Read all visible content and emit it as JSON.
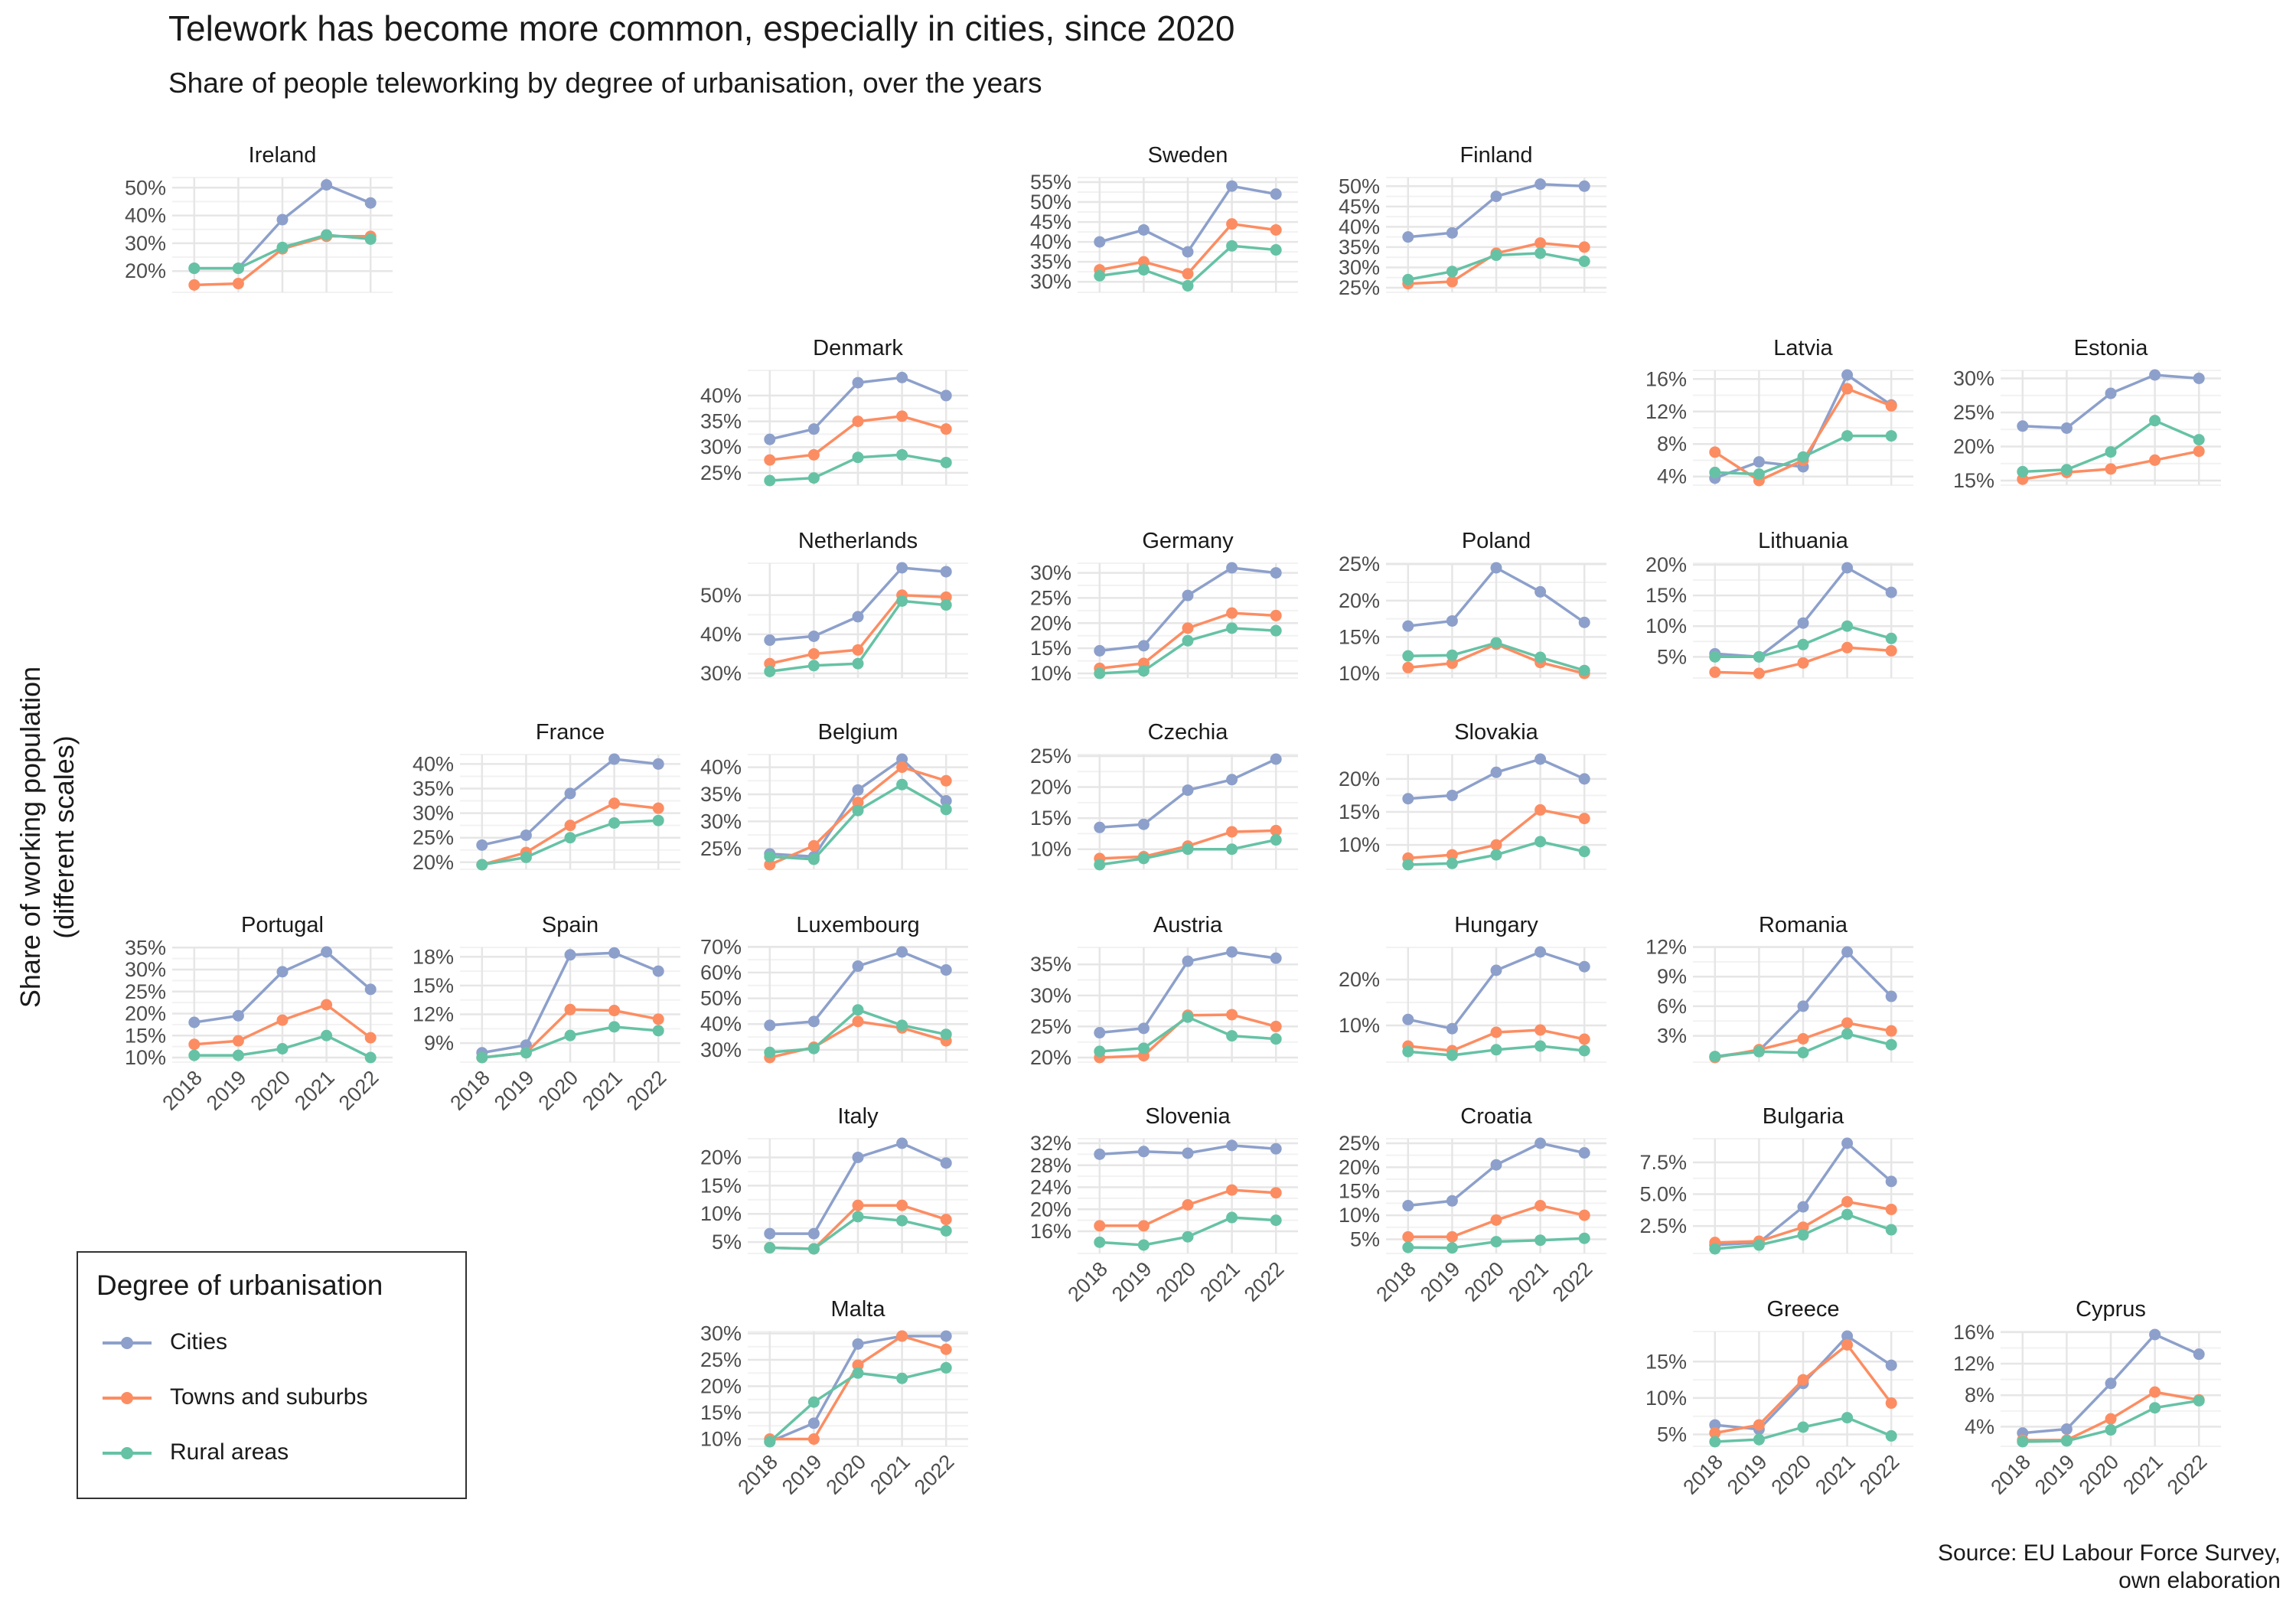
{
  "title": "Telework has become more common, especially in cities, since 2020",
  "subtitle": "Share of people teleworking by degree of urbanisation, over the years",
  "ylabel_lines": [
    "Share of working population",
    "(different scales)"
  ],
  "source_lines": [
    "Source: EU Labour Force Survey,",
    "own elaboration"
  ],
  "legend": {
    "title": "Degree of urbanisation",
    "items": [
      {
        "label": "Cities",
        "color": "#8DA0CB"
      },
      {
        "label": "Towns and suburbs",
        "color": "#FC8D62"
      },
      {
        "label": "Rural areas",
        "color": "#66C2A5"
      }
    ]
  },
  "chart_data": {
    "type": "line",
    "years": [
      "2018",
      "2019",
      "2020",
      "2021",
      "2022"
    ],
    "series_names": [
      "Cities",
      "Towns and suburbs",
      "Rural areas"
    ],
    "colors": [
      "#8DA0CB",
      "#FC8D62",
      "#66C2A5"
    ],
    "panels": [
      {
        "country": "Ireland",
        "row": 0,
        "col": 0,
        "ylim": [
          14,
          52
        ],
        "ticks": [
          20,
          30,
          40,
          50
        ],
        "tick_format": "int",
        "series": [
          [
            21,
            21,
            38.5,
            51,
            44.5
          ],
          [
            15,
            15.5,
            28,
            32.5,
            32.5
          ],
          [
            21,
            21,
            28.5,
            33,
            31.5
          ]
        ]
      },
      {
        "country": "Sweden",
        "row": 0,
        "col": 3,
        "ylim": [
          28.5,
          55
        ],
        "ticks": [
          30,
          35,
          40,
          45,
          50,
          55
        ],
        "tick_format": "int",
        "series": [
          [
            40,
            43,
            37.5,
            54,
            52
          ],
          [
            33,
            35,
            32,
            44.5,
            43
          ],
          [
            31.5,
            33,
            29,
            39,
            38
          ]
        ]
      },
      {
        "country": "Finland",
        "row": 0,
        "col": 4,
        "ylim": [
          25,
          51
        ],
        "ticks": [
          25,
          30,
          35,
          40,
          45,
          50
        ],
        "tick_format": "int",
        "series": [
          [
            37.5,
            38.5,
            47.5,
            50.5,
            50
          ],
          [
            26,
            26.5,
            33.5,
            36,
            35
          ],
          [
            27,
            29,
            33,
            33.5,
            31.5
          ]
        ]
      },
      {
        "country": "Denmark",
        "row": 1,
        "col": 2,
        "ylim": [
          23.5,
          44
        ],
        "ticks": [
          25,
          30,
          35,
          40
        ],
        "tick_format": "int",
        "series": [
          [
            31.5,
            33.5,
            42.5,
            43.5,
            40
          ],
          [
            27.5,
            28.5,
            35,
            36,
            33.5
          ],
          [
            23.5,
            24,
            28,
            28.5,
            27
          ]
        ]
      },
      {
        "country": "Latvia",
        "row": 1,
        "col": 5,
        "ylim": [
          3.5,
          16.5
        ],
        "ticks": [
          4,
          8,
          12,
          16
        ],
        "tick_format": "int",
        "series": [
          [
            3.8,
            5.8,
            5.2,
            16.5,
            12.8
          ],
          [
            7,
            3.5,
            6,
            14.8,
            12.7
          ],
          [
            4.5,
            4.3,
            6.4,
            9,
            9
          ]
        ]
      },
      {
        "country": "Estonia",
        "row": 1,
        "col": 6,
        "ylim": [
          15,
          30.5
        ],
        "ticks": [
          15,
          20,
          25,
          30
        ],
        "tick_format": "int",
        "series": [
          [
            23,
            22.7,
            27.8,
            30.5,
            30
          ],
          [
            15.2,
            16.2,
            16.7,
            18,
            19.3
          ],
          [
            16.3,
            16.6,
            19.2,
            23.8,
            21
          ]
        ]
      },
      {
        "country": "Netherlands",
        "row": 2,
        "col": 2,
        "ylim": [
          30,
          57
        ],
        "ticks": [
          30,
          40,
          50
        ],
        "tick_format": "int",
        "series": [
          [
            38.5,
            39.5,
            44.5,
            57,
            56
          ],
          [
            32.5,
            35,
            36,
            50,
            49.5
          ],
          [
            30.5,
            32,
            32.5,
            48.5,
            47.5
          ]
        ]
      },
      {
        "country": "Germany",
        "row": 2,
        "col": 3,
        "ylim": [
          10,
          31
        ],
        "ticks": [
          10,
          15,
          20,
          25,
          30
        ],
        "tick_format": "int",
        "series": [
          [
            14.5,
            15.5,
            25.5,
            31,
            30
          ],
          [
            11,
            12,
            19,
            22,
            21.5
          ],
          [
            10,
            10.5,
            16.5,
            19,
            18.5
          ]
        ]
      },
      {
        "country": "Poland",
        "row": 2,
        "col": 4,
        "ylim": [
          10,
          24.5
        ],
        "ticks": [
          10,
          15,
          20,
          25
        ],
        "tick_format": "int",
        "series": [
          [
            16.5,
            17.2,
            24.5,
            21.2,
            17
          ],
          [
            10.8,
            11.4,
            14,
            11.5,
            10
          ],
          [
            12.4,
            12.5,
            14.2,
            12.2,
            10.4
          ]
        ]
      },
      {
        "country": "Lithuania",
        "row": 2,
        "col": 5,
        "ylim": [
          2.3,
          19.5
        ],
        "ticks": [
          5,
          10,
          15,
          20
        ],
        "tick_format": "int",
        "series": [
          [
            5.5,
            5,
            10.5,
            19.5,
            15.5
          ],
          [
            2.5,
            2.3,
            4,
            6.5,
            6
          ],
          [
            5,
            5,
            7,
            10,
            8
          ]
        ]
      },
      {
        "country": "France",
        "row": 3,
        "col": 1,
        "ylim": [
          19.5,
          41
        ],
        "ticks": [
          20,
          25,
          30,
          35,
          40
        ],
        "tick_format": "int",
        "series": [
          [
            23.5,
            25.5,
            34,
            41,
            40
          ],
          [
            19.5,
            22,
            27.5,
            32,
            31
          ],
          [
            19.5,
            21,
            25,
            28,
            28.5
          ]
        ]
      },
      {
        "country": "Belgium",
        "row": 3,
        "col": 2,
        "ylim": [
          22,
          41.5
        ],
        "ticks": [
          25,
          30,
          35,
          40
        ],
        "tick_format": "int",
        "series": [
          [
            24,
            23.5,
            35.8,
            41.5,
            33.8
          ],
          [
            22,
            25.5,
            33.5,
            40,
            37.5
          ],
          [
            23.5,
            23,
            32,
            36.8,
            32.2
          ]
        ]
      },
      {
        "country": "Czechia",
        "row": 3,
        "col": 3,
        "ylim": [
          7.5,
          24.5
        ],
        "ticks": [
          10,
          15,
          20,
          25
        ],
        "tick_format": "int",
        "series": [
          [
            13.5,
            14,
            19.5,
            21.2,
            24.5
          ],
          [
            8.5,
            8.8,
            10.5,
            12.8,
            13
          ],
          [
            7.5,
            8.5,
            10,
            10,
            11.5
          ]
        ]
      },
      {
        "country": "Slovakia",
        "row": 3,
        "col": 4,
        "ylim": [
          7,
          23
        ],
        "ticks": [
          10,
          15,
          20
        ],
        "tick_format": "int",
        "series": [
          [
            17,
            17.5,
            21,
            23,
            20
          ],
          [
            8,
            8.5,
            10,
            15.3,
            14
          ],
          [
            7,
            7.2,
            8.5,
            10.5,
            9
          ]
        ]
      },
      {
        "country": "Portugal",
        "row": 4,
        "col": 0,
        "ylim": [
          10,
          34
        ],
        "ticks": [
          10,
          15,
          20,
          25,
          30,
          35
        ],
        "tick_format": "int",
        "series": [
          [
            18,
            19.5,
            29.5,
            34,
            25.5
          ],
          [
            13,
            13.8,
            18.5,
            22,
            14.5
          ],
          [
            10.5,
            10.5,
            12,
            15,
            10
          ]
        ]
      },
      {
        "country": "Spain",
        "row": 4,
        "col": 1,
        "ylim": [
          7.5,
          18.5
        ],
        "ticks": [
          9,
          12,
          15,
          18
        ],
        "tick_format": "int",
        "series": [
          [
            8,
            8.8,
            18.2,
            18.4,
            16.5
          ],
          [
            7.5,
            8,
            12.5,
            12.4,
            11.5
          ],
          [
            7.5,
            8,
            9.8,
            10.7,
            10.3
          ]
        ]
      },
      {
        "country": "Luxembourg",
        "row": 4,
        "col": 2,
        "ylim": [
          27,
          68
        ],
        "ticks": [
          30,
          40,
          50,
          60,
          70
        ],
        "tick_format": "int",
        "series": [
          [
            39.5,
            41,
            62.5,
            68,
            61
          ],
          [
            27,
            31,
            41,
            38.5,
            33.5
          ],
          [
            29,
            30.5,
            45.5,
            39.5,
            36
          ]
        ]
      },
      {
        "country": "Austria",
        "row": 4,
        "col": 3,
        "ylim": [
          20,
          37
        ],
        "ticks": [
          20,
          25,
          30,
          35
        ],
        "tick_format": "int",
        "series": [
          [
            24,
            24.7,
            35.5,
            37,
            36
          ],
          [
            20,
            20.3,
            26.8,
            26.9,
            25
          ],
          [
            21,
            21.5,
            26.5,
            23.5,
            23
          ]
        ]
      },
      {
        "country": "Hungary",
        "row": 4,
        "col": 4,
        "ylim": [
          3,
          26
        ],
        "ticks": [
          10,
          20
        ],
        "tick_format": "int",
        "series": [
          [
            11.3,
            9.3,
            22,
            26,
            22.8
          ],
          [
            5.5,
            4.5,
            8.5,
            9,
            7
          ],
          [
            4.3,
            3.5,
            4.7,
            5.5,
            4.5
          ]
        ]
      },
      {
        "country": "Romania",
        "row": 4,
        "col": 5,
        "ylim": [
          0.8,
          11.5
        ],
        "ticks": [
          3,
          6,
          9,
          12
        ],
        "tick_format": "int",
        "series": [
          [
            0.9,
            1.5,
            6,
            11.5,
            7
          ],
          [
            0.8,
            1.6,
            2.7,
            4.3,
            3.5
          ],
          [
            0.9,
            1.4,
            1.3,
            3.2,
            2.1
          ]
        ]
      },
      {
        "country": "Italy",
        "row": 5,
        "col": 2,
        "ylim": [
          3.8,
          22.5
        ],
        "ticks": [
          5,
          10,
          15,
          20
        ],
        "tick_format": "int",
        "series": [
          [
            6.5,
            6.5,
            20,
            22.5,
            19
          ],
          [
            4,
            3.8,
            11.5,
            11.5,
            9
          ],
          [
            4,
            3.8,
            9.5,
            8.8,
            7
          ]
        ]
      },
      {
        "country": "Slovenia",
        "row": 5,
        "col": 3,
        "ylim": [
          12.8,
          32
        ],
        "ticks": [
          16,
          20,
          24,
          28,
          32
        ],
        "tick_format": "float0",
        "series": [
          [
            30,
            30.5,
            30.2,
            31.6,
            31
          ],
          [
            17,
            17,
            20.8,
            23.5,
            23
          ],
          [
            14,
            13.5,
            15,
            18.5,
            18
          ]
        ]
      },
      {
        "country": "Croatia",
        "row": 5,
        "col": 4,
        "ylim": [
          3,
          25
        ],
        "ticks": [
          5,
          10,
          15,
          20,
          25
        ],
        "tick_format": "int",
        "series": [
          [
            12,
            13,
            20.5,
            25,
            23
          ],
          [
            5.5,
            5.5,
            9,
            12,
            10
          ],
          [
            3.3,
            3.2,
            4.5,
            4.8,
            5.2
          ]
        ]
      },
      {
        "country": "Bulgaria",
        "row": 5,
        "col": 5,
        "ylim": [
          0.7,
          9
        ],
        "ticks": [
          2.5,
          5,
          7.5
        ],
        "tick_format": "one_decimal",
        "series": [
          [
            1,
            1.2,
            4,
            9,
            6
          ],
          [
            1.2,
            1.3,
            2.4,
            4.4,
            3.8
          ],
          [
            0.7,
            1,
            1.8,
            3.4,
            2.2
          ]
        ]
      },
      {
        "country": "Malta",
        "row": 6,
        "col": 2,
        "ylim": [
          9.5,
          29.5
        ],
        "ticks": [
          10,
          15,
          20,
          25,
          30
        ],
        "tick_format": "int",
        "series": [
          [
            9.5,
            13,
            28,
            29.5,
            29.5
          ],
          [
            10,
            10,
            24,
            29.5,
            27
          ],
          [
            9.5,
            17,
            22.5,
            21.5,
            23.5
          ]
        ]
      },
      {
        "country": "Greece",
        "row": 6,
        "col": 5,
        "ylim": [
          4,
          18.5
        ],
        "ticks": [
          5,
          10,
          15
        ],
        "tick_format": "int",
        "series": [
          [
            6.3,
            5.7,
            12,
            18.5,
            14.5
          ],
          [
            5.2,
            6.3,
            12.5,
            17.3,
            9.3
          ],
          [
            4,
            4.3,
            6,
            7.3,
            4.8
          ]
        ]
      },
      {
        "country": "Cyprus",
        "row": 6,
        "col": 6,
        "ylim": [
          2.1,
          15.5
        ],
        "ticks": [
          4,
          8,
          12,
          16
        ],
        "tick_format": "int",
        "series": [
          [
            3.2,
            3.7,
            9.5,
            15.7,
            13.2
          ],
          [
            2.3,
            2.3,
            5,
            8.4,
            7.4
          ],
          [
            2.1,
            2.2,
            3.6,
            6.4,
            7.3
          ]
        ]
      }
    ]
  }
}
